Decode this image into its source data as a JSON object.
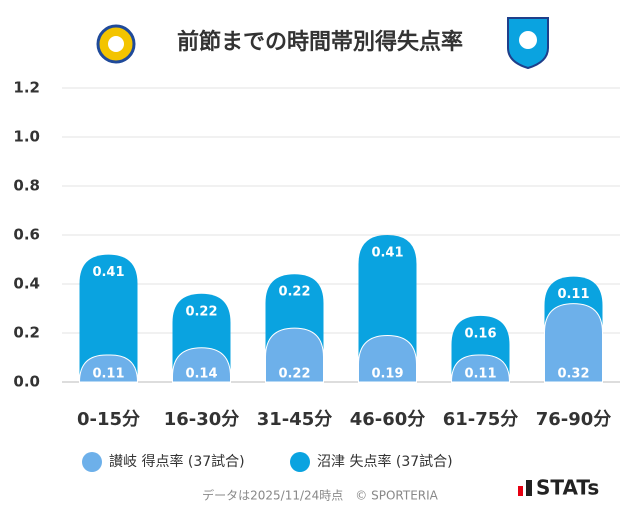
{
  "chart_data": {
    "type": "bar",
    "stacked": true,
    "title": "前節までの時間帯別得失点率",
    "categories": [
      "0-15分",
      "16-30分",
      "31-45分",
      "46-60分",
      "61-75分",
      "76-90分"
    ],
    "series": [
      {
        "name": "讃岐 得点率 (37試合)",
        "color": "#6db0ea",
        "values": [
          0.11,
          0.14,
          0.22,
          0.19,
          0.11,
          0.32
        ]
      },
      {
        "name": "沼津 失点率 (37試合)",
        "color": "#0aa3e0",
        "values": [
          0.41,
          0.22,
          0.22,
          0.41,
          0.16,
          0.11
        ]
      }
    ],
    "ylim": [
      0,
      1.2
    ],
    "yticks": [
      {
        "value": 0,
        "label": "0.0"
      },
      0.2,
      0.4,
      0.6,
      0.8,
      {
        "value": 1,
        "label": "1.0"
      },
      1.2
    ],
    "grid": true,
    "legend": "bottom"
  },
  "footer": "データは2025/11/24時点　© SPORTERIA",
  "brand": "STATs"
}
